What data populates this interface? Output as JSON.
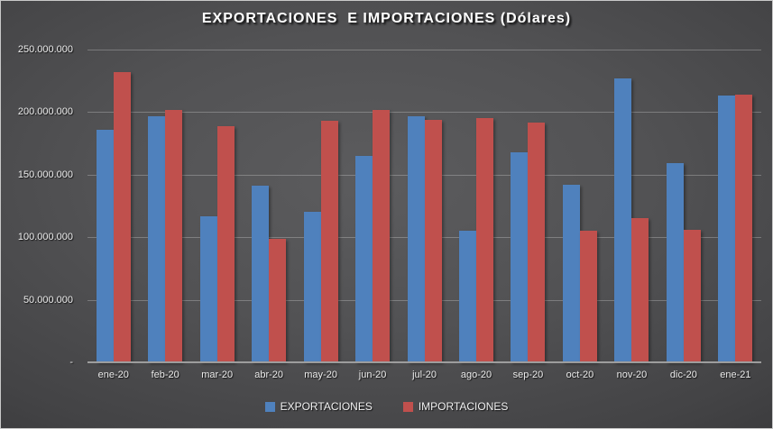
{
  "title": "EXPORTACIONES  E IMPORTACIONES (Dólares)",
  "colors": {
    "exportaciones": "#4F81BD",
    "importaciones": "#C0504D",
    "background_center": "#5C5C5E",
    "background_edge": "#27272A",
    "gridline": "rgba(255,255,255,0.25)",
    "axis_line": "#9D9D9D",
    "text": "#F2F2F2"
  },
  "chart_data": {
    "type": "bar",
    "title": "EXPORTACIONES  E IMPORTACIONES (Dólares)",
    "xlabel": "",
    "ylabel": "",
    "ylim": [
      0,
      250000000
    ],
    "grid": true,
    "legend_position": "bottom",
    "categories": [
      "ene-20",
      "feb-20",
      "mar-20",
      "abr-20",
      "may-20",
      "jun-20",
      "jul-20",
      "ago-20",
      "sep-20",
      "oct-20",
      "nov-20",
      "dic-20",
      "ene-21"
    ],
    "series": [
      {
        "name": "EXPORTACIONES",
        "color": "#4F81BD",
        "values": [
          186000000,
          197000000,
          117000000,
          141000000,
          120000000,
          165000000,
          197000000,
          105000000,
          168000000,
          142000000,
          227000000,
          159000000,
          213000000
        ]
      },
      {
        "name": "IMPORTACIONES",
        "color": "#C0504D",
        "values": [
          232000000,
          202000000,
          189000000,
          99000000,
          193000000,
          202000000,
          194000000,
          195000000,
          192000000,
          105000000,
          115000000,
          106000000,
          214000000
        ]
      }
    ],
    "y_ticks": [
      {
        "value": 250000000,
        "label": "250.000.000"
      },
      {
        "value": 200000000,
        "label": "200.000.000"
      },
      {
        "value": 150000000,
        "label": "150.000.000"
      },
      {
        "value": 100000000,
        "label": "100.000.000"
      },
      {
        "value": 50000000,
        "label": "50.000.000"
      },
      {
        "value": 0,
        "label": "-"
      }
    ]
  }
}
